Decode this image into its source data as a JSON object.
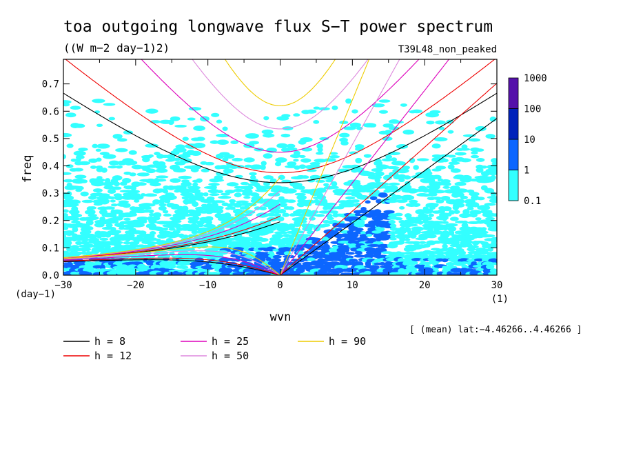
{
  "chart_data": {
    "type": "heatmap",
    "title": "toa outgoing longwave flux S−T power spectrum",
    "subtitle": "((W m−2 day−1)2)",
    "experiment_label": "T39L48_non_peaked",
    "xlabel": "wvn",
    "ylabel": "freq",
    "x_unit": "(1)",
    "y_unit": "(day−1)",
    "xlim": [
      -30,
      30
    ],
    "ylim": [
      0,
      0.79
    ],
    "x_ticks": [
      -30,
      -20,
      -10,
      0,
      10,
      20,
      30
    ],
    "x_tick_labels": [
      "−30",
      "−20",
      "−10",
      "0",
      "10",
      "20",
      "30"
    ],
    "y_ticks": [
      0,
      0.1,
      0.2,
      0.3,
      0.4,
      0.5,
      0.6,
      0.7
    ],
    "y_tick_labels": [
      "0.0",
      "0.1",
      "0.2",
      "0.3",
      "0.4",
      "0.5",
      "0.6",
      "0.7"
    ],
    "footnote": "[ (mean) lat:−4.46266..4.46266 ]",
    "colorbar": {
      "levels": [
        0.1,
        1,
        10,
        100,
        1000
      ],
      "level_labels": [
        "0.1",
        "1",
        "10",
        "100",
        "1000"
      ],
      "colors": [
        "#33ffff",
        "#0c66ff",
        "#0022bb",
        "#5511aa"
      ]
    },
    "series": [
      {
        "name": "h =  8",
        "h": 8,
        "color": "#000000"
      },
      {
        "name": "h = 12",
        "h": 12,
        "color": "#ee0000"
      },
      {
        "name": "h = 25",
        "h": 25,
        "color": "#dd00bb"
      },
      {
        "name": "h = 50",
        "h": 50,
        "color": "#dd88dd"
      },
      {
        "name": "h = 90",
        "h": 90,
        "color": "#eecc00"
      }
    ]
  }
}
